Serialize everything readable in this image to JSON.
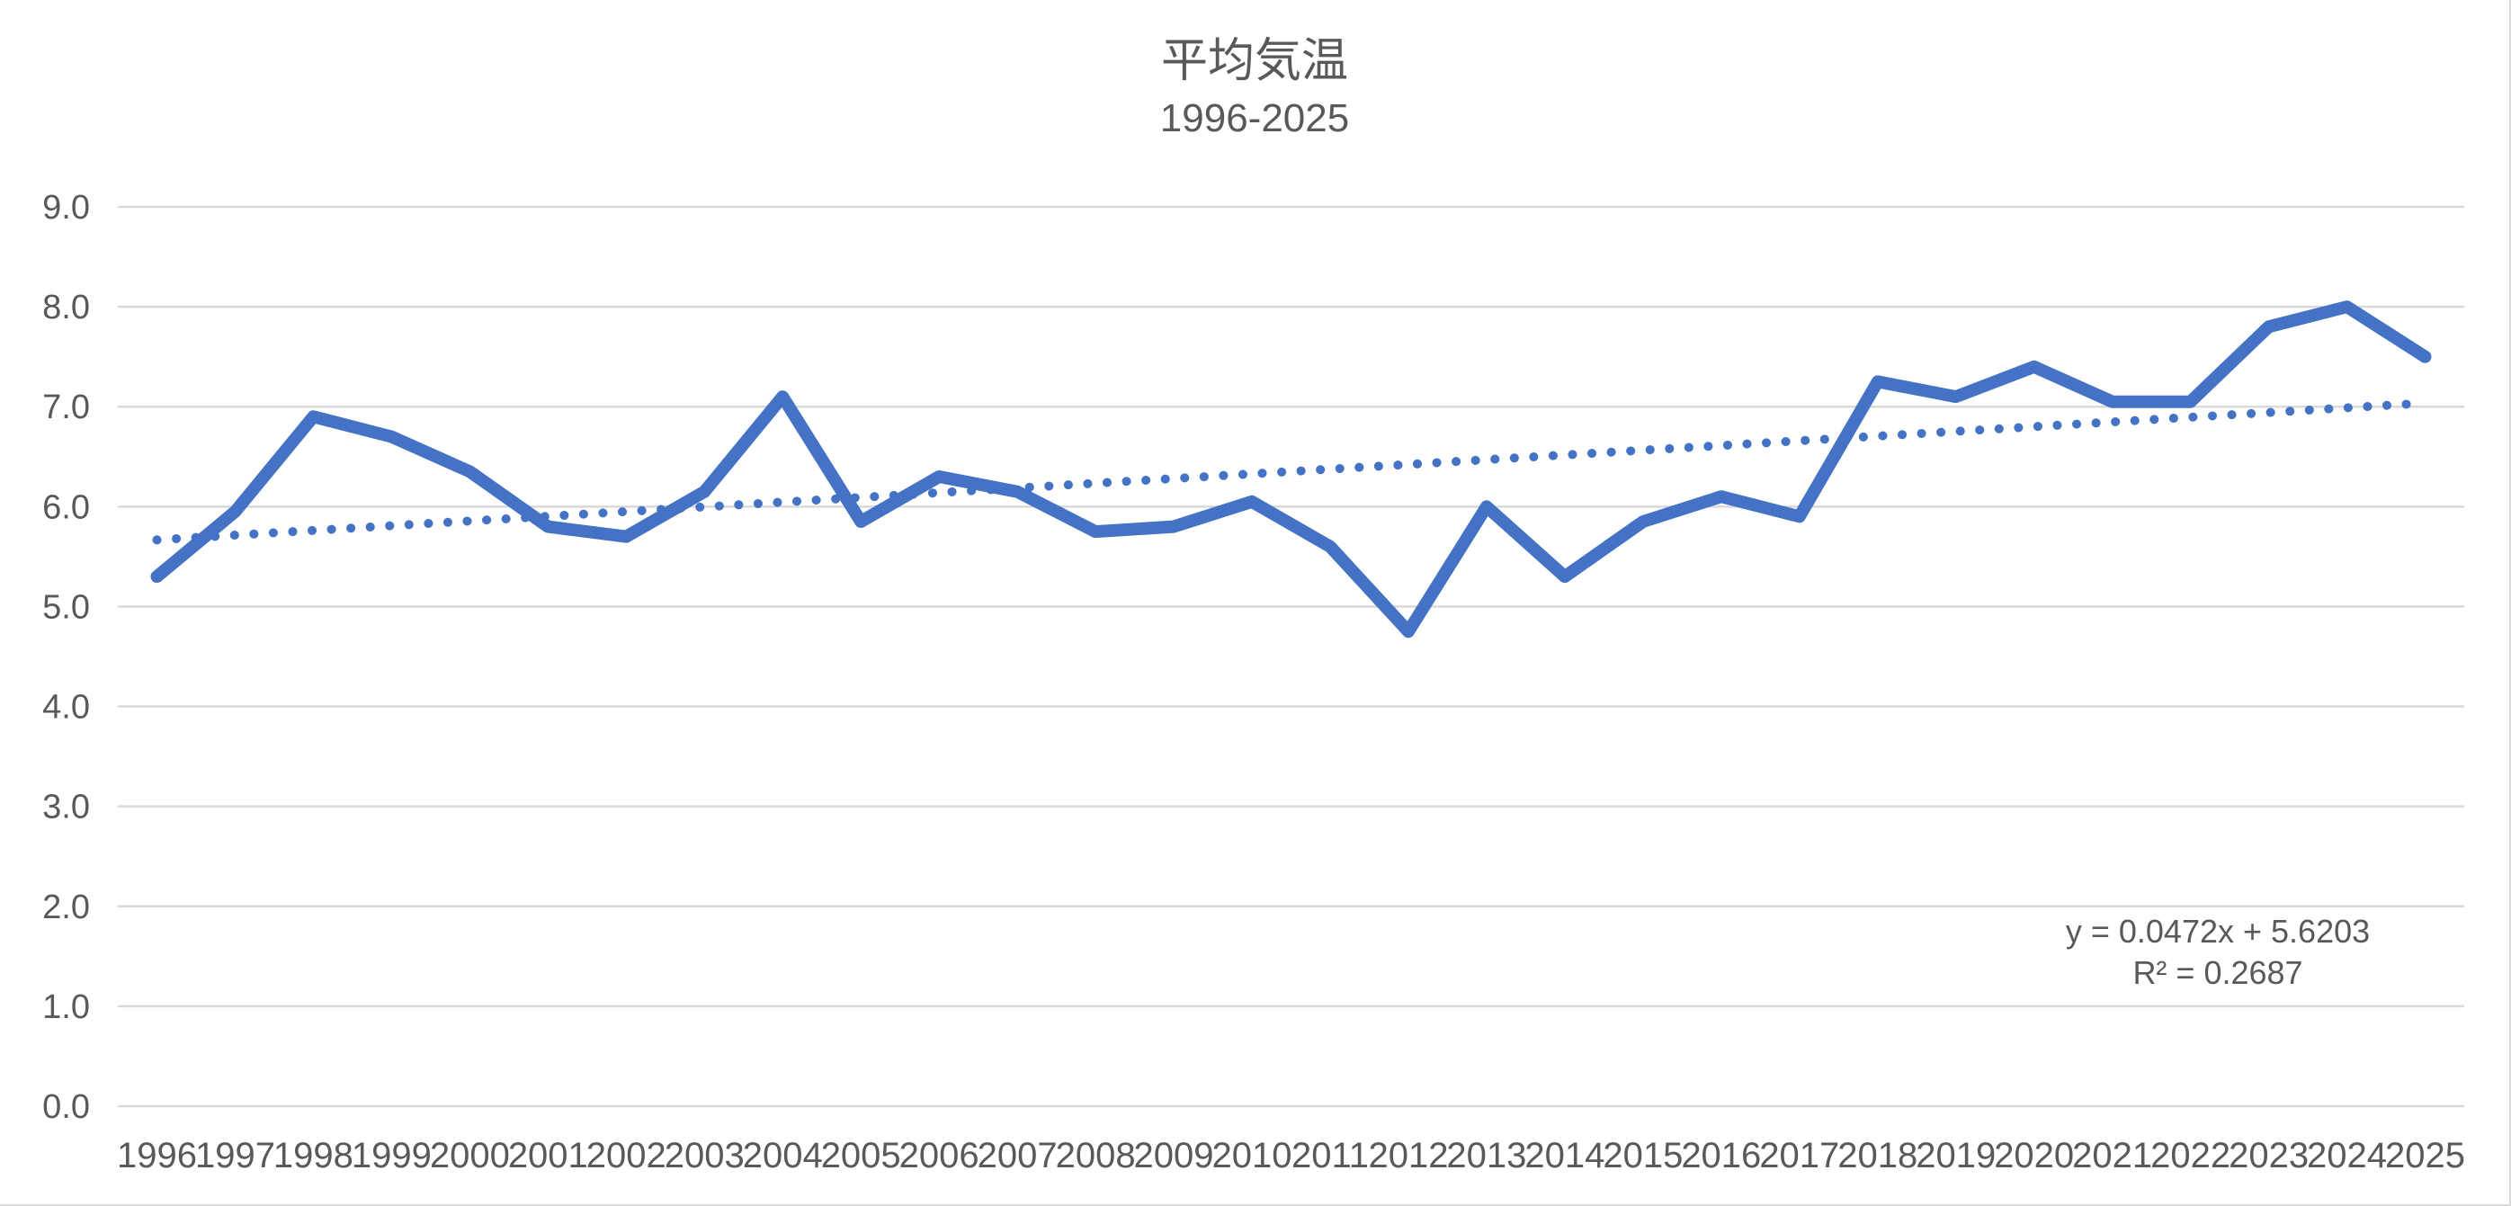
{
  "chart": {
    "title": "平均気温",
    "subtitle": "1996-2025",
    "equation": {
      "line1": "y = 0.0472x + 5.6203",
      "line2": "R² = 0.2687"
    }
  },
  "chart_data": {
    "type": "line",
    "title": "平均気温",
    "subtitle": "1996-2025",
    "categories": [
      "1996",
      "1997",
      "1998",
      "1999",
      "2000",
      "2001",
      "2002",
      "2003",
      "2004",
      "2005",
      "2006",
      "2007",
      "2008",
      "2009",
      "2010",
      "2011",
      "2012",
      "2013",
      "2014",
      "2015",
      "2016",
      "2017",
      "2018",
      "2019",
      "2020",
      "2021",
      "2022",
      "2023",
      "2024",
      "2025"
    ],
    "series": [
      {
        "name": "平均気温",
        "values": [
          5.3,
          5.95,
          6.9,
          6.7,
          6.35,
          5.8,
          5.7,
          6.15,
          7.1,
          5.85,
          6.3,
          6.15,
          5.75,
          5.8,
          6.05,
          5.6,
          4.75,
          6.0,
          5.3,
          5.85,
          6.1,
          5.9,
          7.25,
          7.1,
          7.4,
          7.05,
          7.05,
          7.8,
          8.0,
          7.5
        ]
      }
    ],
    "trendline": {
      "type": "linear",
      "slope": 0.0472,
      "intercept": 5.6203,
      "r_squared": 0.2687,
      "equation_label": "y = 0.0472x + 5.6203",
      "r_squared_label": "R² = 0.2687"
    },
    "xlabel": "",
    "ylabel": "",
    "ylim": [
      0,
      9
    ],
    "y_tick_labels": [
      "0.0",
      "1.0",
      "2.0",
      "3.0",
      "4.0",
      "5.0",
      "6.0",
      "7.0",
      "8.0",
      "9.0"
    ],
    "grid": "horizontal",
    "legend": "none",
    "colors": {
      "series": "#4472C4",
      "trendline": "#4472C4",
      "gridline": "#D9D9D9",
      "text": "#595959",
      "background": "#FFFFFF"
    }
  }
}
